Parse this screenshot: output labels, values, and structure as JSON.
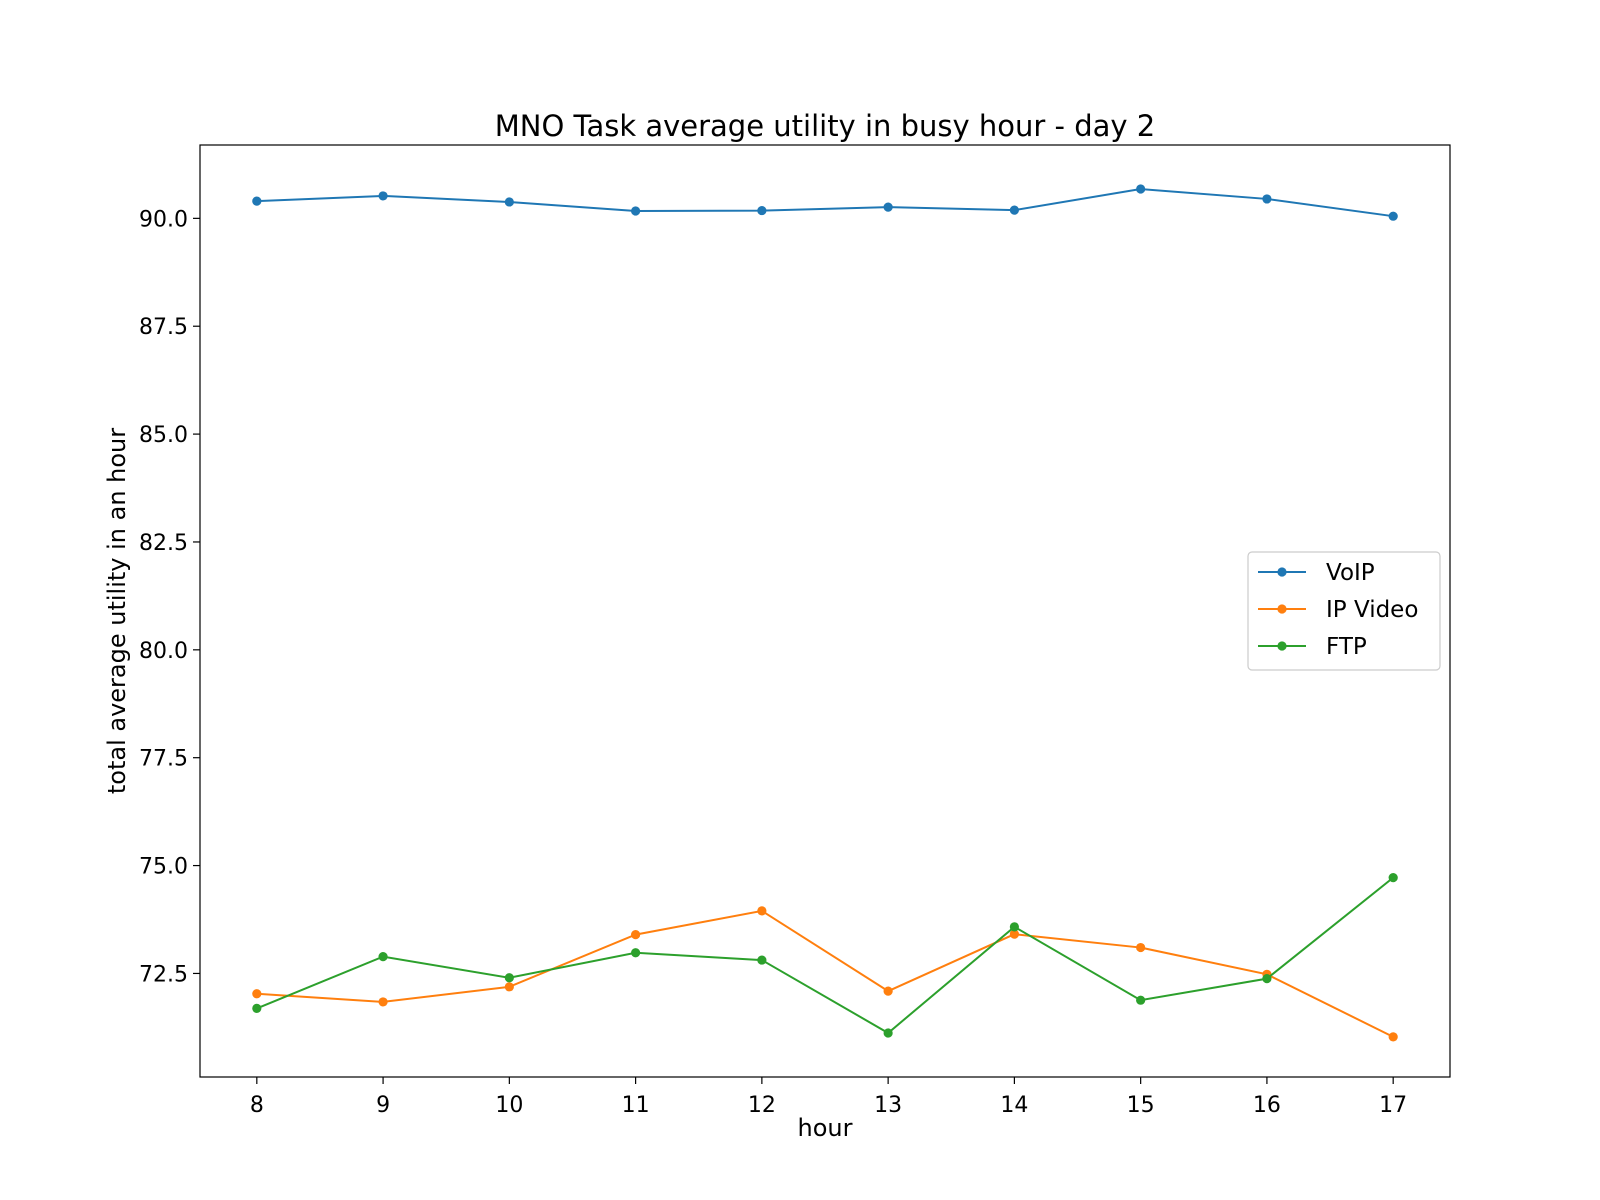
{
  "chart_data": {
    "type": "line",
    "title": "MNO Task average utility in busy hour - day 2",
    "xlabel": "hour",
    "ylabel": "total average utility in an hour",
    "x": [
      8,
      9,
      10,
      11,
      12,
      13,
      14,
      15,
      16,
      17
    ],
    "xticks": [
      "8",
      "9",
      "10",
      "11",
      "12",
      "13",
      "14",
      "15",
      "16",
      "17"
    ],
    "yticks": [
      "72.5",
      "75.0",
      "77.5",
      "80.0",
      "82.5",
      "85.0",
      "87.5",
      "90.0"
    ],
    "ylim": [
      70.1,
      91.7
    ],
    "xlim": [
      7.55,
      17.45
    ],
    "grid": false,
    "legend_position": "center-right",
    "series": [
      {
        "name": "VoIP",
        "color": "#1f77b4",
        "values": [
          90.4,
          90.52,
          90.38,
          90.17,
          90.18,
          90.26,
          90.19,
          90.68,
          90.45,
          90.05
        ]
      },
      {
        "name": "IP Video",
        "color": "#ff7f0e",
        "values": [
          72.03,
          71.84,
          72.19,
          73.4,
          73.95,
          72.09,
          73.41,
          73.1,
          72.48,
          71.03
        ]
      },
      {
        "name": "FTP",
        "color": "#2ca02c",
        "values": [
          71.69,
          72.89,
          72.4,
          72.98,
          72.81,
          71.12,
          73.58,
          71.88,
          72.38,
          74.72
        ]
      }
    ]
  }
}
